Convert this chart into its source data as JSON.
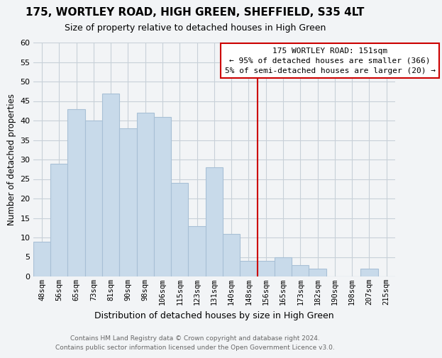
{
  "title": "175, WORTLEY ROAD, HIGH GREEN, SHEFFIELD, S35 4LT",
  "subtitle": "Size of property relative to detached houses in High Green",
  "xlabel": "Distribution of detached houses by size in High Green",
  "ylabel": "Number of detached properties",
  "bar_labels": [
    "48sqm",
    "56sqm",
    "65sqm",
    "73sqm",
    "81sqm",
    "90sqm",
    "98sqm",
    "106sqm",
    "115sqm",
    "123sqm",
    "131sqm",
    "140sqm",
    "148sqm",
    "156sqm",
    "165sqm",
    "173sqm",
    "182sqm",
    "190sqm",
    "198sqm",
    "207sqm",
    "215sqm"
  ],
  "bar_values": [
    9,
    29,
    43,
    40,
    47,
    38,
    42,
    41,
    24,
    13,
    28,
    11,
    4,
    4,
    5,
    3,
    2,
    0,
    0,
    2,
    0
  ],
  "bar_color": "#c8daea",
  "bar_edge_color": "#a8c0d6",
  "vline_x": 12.5,
  "vline_color": "#cc0000",
  "annotation_title": "175 WORTLEY ROAD: 151sqm",
  "annotation_line1": "← 95% of detached houses are smaller (366)",
  "annotation_line2": "5% of semi-detached houses are larger (20) →",
  "annotation_box_color": "#ffffff",
  "annotation_box_edge": "#cc0000",
  "ylim": [
    0,
    60
  ],
  "yticks": [
    0,
    5,
    10,
    15,
    20,
    25,
    30,
    35,
    40,
    45,
    50,
    55,
    60
  ],
  "footer_line1": "Contains HM Land Registry data © Crown copyright and database right 2024.",
  "footer_line2": "Contains public sector information licensed under the Open Government Licence v3.0.",
  "background_color": "#f2f4f6",
  "grid_color": "#c8d0d8",
  "title_fontsize": 11,
  "subtitle_fontsize": 9
}
